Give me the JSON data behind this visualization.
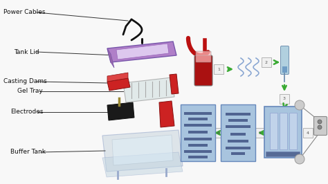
{
  "bg_color": "#f8f8f8",
  "labels": {
    "power_cables": "Power Cables",
    "tank_lid": "Tank Lid",
    "casting_dams": "Casting Dams",
    "gel_tray": "Gel Tray",
    "electrodes": "Electrodes",
    "buffer_tank": "Buffer Tank"
  },
  "colors": {
    "tank_lid_purple": "#b07fc8",
    "tank_lid_inner": "#c89ed8",
    "casting_dam_red": "#cc2222",
    "gel_tray_clear": "#d8e8e8",
    "electrode_black": "#222222",
    "buffer_clear": "#ccdde8",
    "arrow_green": "#3aaa33",
    "gel_blue_light": "#a8c4de",
    "gel_blue_dark": "#6688bb",
    "gel_band_dark": "#334477",
    "step_fill": "#f0f0f0",
    "step_border": "#aaaaaa",
    "dna_blue": "#7799cc",
    "tube_red": "#bb1111",
    "pipette_blue": "#aabbcc",
    "wire_gray": "#888888"
  }
}
